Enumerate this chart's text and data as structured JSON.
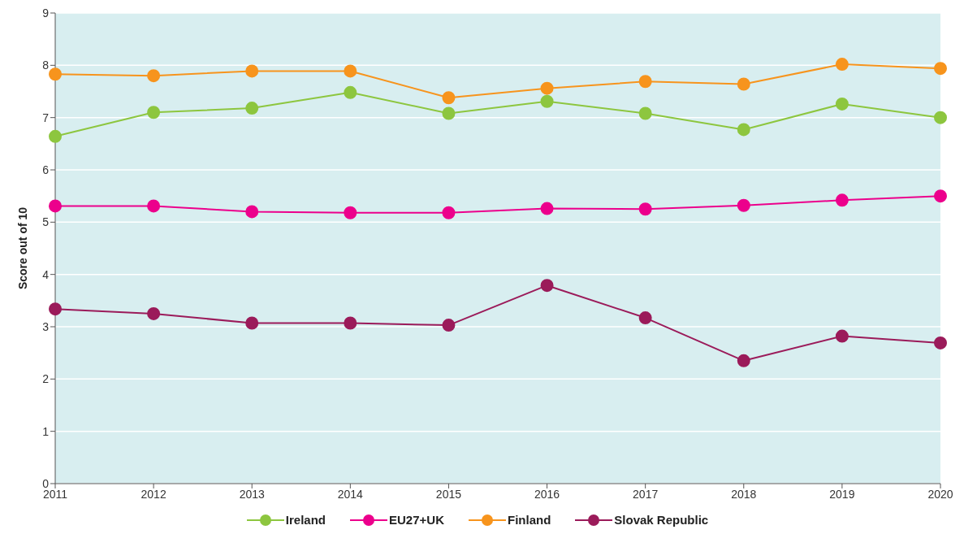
{
  "chart_data": {
    "type": "line",
    "ylabel": "Score out of 10",
    "categories": [
      "2011",
      "2012",
      "2013",
      "2014",
      "2015",
      "2016",
      "2017",
      "2018",
      "2019",
      "2020"
    ],
    "series": [
      {
        "name": "Ireland",
        "color": "#8dc63f",
        "values": [
          6.64,
          7.1,
          7.18,
          7.48,
          7.08,
          7.31,
          7.08,
          6.77,
          7.26,
          7.0
        ]
      },
      {
        "name": "EU27+UK",
        "color": "#ec008c",
        "values": [
          5.31,
          5.31,
          5.2,
          5.18,
          5.18,
          5.26,
          5.25,
          5.32,
          5.42,
          5.5
        ]
      },
      {
        "name": "Finland",
        "color": "#f7941d",
        "values": [
          7.83,
          7.8,
          7.89,
          7.89,
          7.38,
          7.56,
          7.69,
          7.64,
          8.02,
          7.94
        ]
      },
      {
        "name": "Slovak Republic",
        "color": "#9b1b5a",
        "values": [
          3.34,
          3.25,
          3.07,
          3.07,
          3.03,
          3.79,
          3.17,
          2.35,
          2.82,
          2.69
        ]
      }
    ],
    "ylim": [
      0,
      9
    ],
    "yticks": [
      0,
      1,
      2,
      3,
      4,
      5,
      6,
      7,
      8,
      9
    ],
    "grid": "y",
    "legend": "bottom",
    "marker": "circle"
  }
}
